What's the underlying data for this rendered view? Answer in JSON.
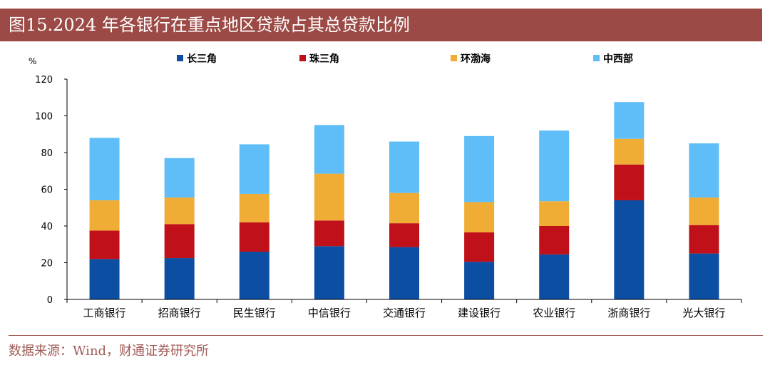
{
  "title": "图15.2024 年各银行在重点地区贷款占其总贷款比例",
  "source": "数据来源：Wind，财通证券研究所",
  "colors": {
    "title_bg": "#9b4a45",
    "series": [
      "#0b4ea2",
      "#c0101a",
      "#f0ad35",
      "#5fbef8"
    ]
  },
  "chart_data": {
    "type": "bar",
    "stacked": true,
    "ylabel": "%",
    "ylim": [
      0,
      120
    ],
    "yticks": [
      0,
      20,
      40,
      60,
      80,
      100,
      120
    ],
    "grid": false,
    "legend_position": "top",
    "categories": [
      "工商银行",
      "招商银行",
      "民生银行",
      "中信银行",
      "交通银行",
      "建设银行",
      "农业银行",
      "浙商银行",
      "光大银行"
    ],
    "series": [
      {
        "name": "长三角",
        "values": [
          22,
          22.5,
          26,
          29,
          28.5,
          20.5,
          24.5,
          54,
          25
        ]
      },
      {
        "name": "珠三角",
        "values": [
          15.5,
          18.5,
          16,
          14,
          13,
          16,
          15.5,
          19.5,
          15.5
        ]
      },
      {
        "name": "环渤海",
        "values": [
          16.5,
          14.5,
          15.5,
          25.5,
          16.5,
          16.5,
          13.5,
          14,
          15
        ]
      },
      {
        "name": "中西部",
        "values": [
          34,
          21.5,
          27,
          26.5,
          28,
          36,
          38.5,
          20,
          29.5
        ]
      }
    ]
  }
}
